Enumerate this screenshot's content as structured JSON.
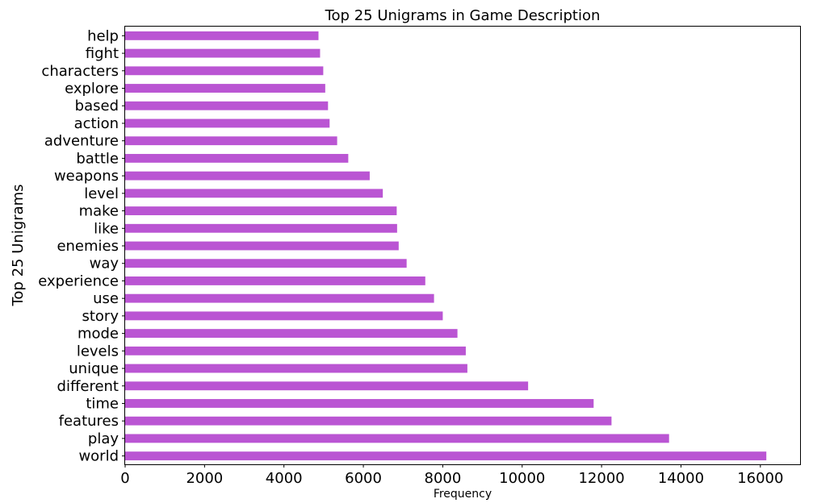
{
  "chart_data": {
    "type": "bar",
    "orientation": "horizontal",
    "title": "Top 25 Unigrams in Game Description",
    "xlabel": "Frequency",
    "ylabel": "Top 25 Unigrams",
    "xlim": [
      0,
      17000
    ],
    "xticks": [
      "0",
      "2000",
      "4000",
      "6000",
      "8000",
      "10000",
      "12000",
      "14000",
      "16000"
    ],
    "xtick_values": [
      0,
      2000,
      4000,
      6000,
      8000,
      10000,
      12000,
      14000,
      16000
    ],
    "bar_color": "#ba55d3",
    "grid": false,
    "categories": [
      "world",
      "play",
      "features",
      "time",
      "different",
      "unique",
      "levels",
      "mode",
      "story",
      "use",
      "experience",
      "way",
      "enemies",
      "like",
      "make",
      "level",
      "weapons",
      "battle",
      "adventure",
      "action",
      "based",
      "explore",
      "characters",
      "fight",
      "help"
    ],
    "values": [
      16150,
      13700,
      12250,
      11800,
      10150,
      8620,
      8580,
      8370,
      8000,
      7780,
      7560,
      7090,
      6890,
      6850,
      6840,
      6490,
      6160,
      5620,
      5340,
      5150,
      5110,
      5040,
      4990,
      4910,
      4870
    ]
  }
}
